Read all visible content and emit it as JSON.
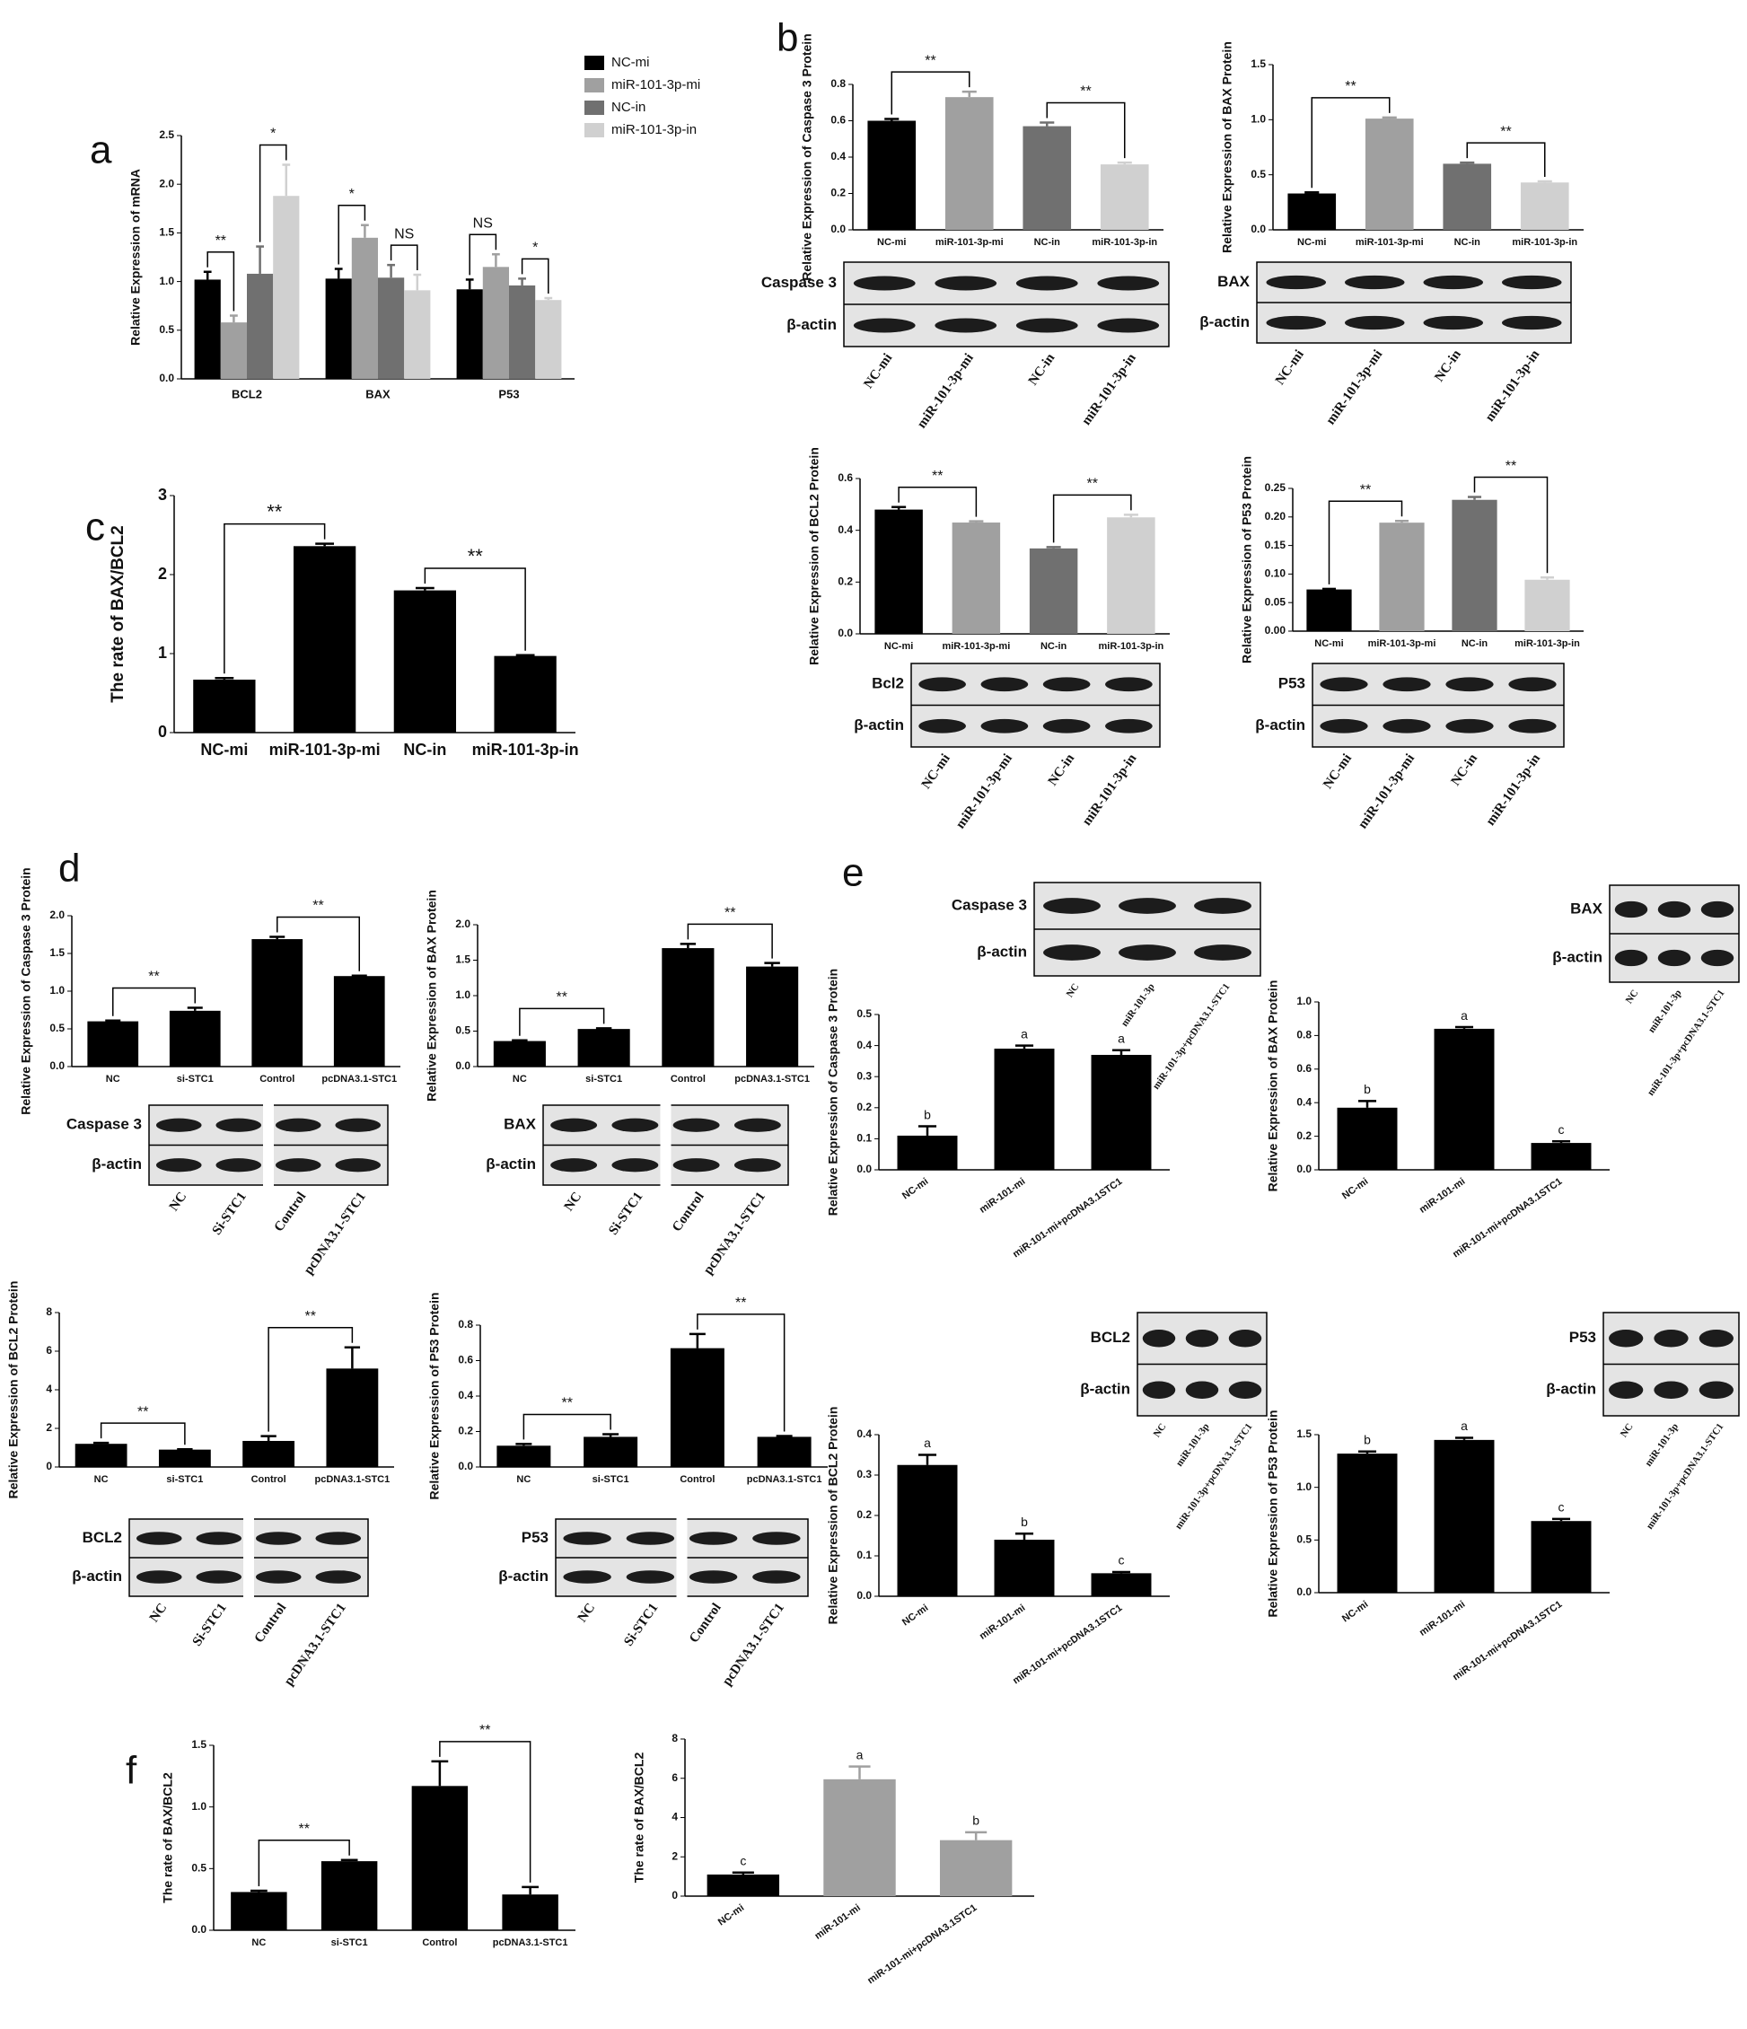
{
  "chart_data": [
    {
      "type": "grouped-bar",
      "panel": "a",
      "ylabel": "Relative Expression of mRNA",
      "categories": [
        "BCL2",
        "BAX",
        "P53"
      ],
      "series": [
        {
          "name": "NC-mi",
          "color": "#000000",
          "values": [
            1.02,
            1.03,
            0.92
          ],
          "errors": [
            0.08,
            0.1,
            0.1
          ]
        },
        {
          "name": "miR-101-3p-mi",
          "color": "#a0a0a0",
          "values": [
            0.58,
            1.45,
            1.15
          ],
          "errors": [
            0.07,
            0.13,
            0.13
          ]
        },
        {
          "name": "NC-in",
          "color": "#707070",
          "values": [
            1.08,
            1.04,
            0.96
          ],
          "errors": [
            0.28,
            0.13,
            0.07
          ]
        },
        {
          "name": "miR-101-3p-in",
          "color": "#d0d0d0",
          "values": [
            1.88,
            0.91,
            0.81
          ],
          "errors": [
            0.32,
            0.16,
            0.02
          ]
        }
      ],
      "ylim": [
        0,
        2.5
      ],
      "yticks": [
        {
          "value": 0,
          "label": "0.0"
        },
        0.5,
        {
          "value": 1,
          "label": "1.0"
        },
        1.5,
        {
          "value": 2,
          "label": "2.0"
        },
        2.5
      ],
      "brackets": [
        {
          "group": 0,
          "pair": [
            0,
            1
          ],
          "label": "**"
        },
        {
          "group": 0,
          "pair": [
            2,
            3
          ],
          "label": "*"
        },
        {
          "group": 1,
          "pair": [
            0,
            1
          ],
          "label": "*"
        },
        {
          "group": 1,
          "pair": [
            2,
            3
          ],
          "label": "NS"
        },
        {
          "group": 2,
          "pair": [
            0,
            1
          ],
          "label": "NS"
        },
        {
          "group": 2,
          "pair": [
            2,
            3
          ],
          "label": "*"
        }
      ]
    },
    {
      "type": "bar",
      "panel": "b",
      "ylabel": "Relative Expression of Caspase 3 Protein",
      "categories": [
        "NC-mi",
        "miR-101-3p-mi",
        "NC-in",
        "miR-101-3p-in"
      ],
      "values": [
        0.6,
        0.73,
        0.57,
        0.36
      ],
      "errors": [
        0.01,
        0.03,
        0.02,
        0.01
      ],
      "colors": [
        "#000000",
        "#a0a0a0",
        "#707070",
        "#d0d0d0"
      ],
      "ylim": [
        0,
        0.8
      ],
      "yticks": [
        {
          "value": 0,
          "label": "0.0"
        },
        0.2,
        0.4,
        0.6,
        0.8
      ],
      "brackets": [
        {
          "pair": [
            0,
            1
          ],
          "label": "**"
        },
        {
          "pair": [
            2,
            3
          ],
          "label": "**"
        }
      ],
      "blot": {
        "rows": [
          "Caspase 3",
          "β-actin"
        ],
        "lanes": [
          "NC-mi",
          "miR-101-3p-mi",
          "NC-in",
          "miR-101-3p-in"
        ]
      }
    },
    {
      "type": "bar",
      "ylabel": "Relative Expression of BAX Protein",
      "categories": [
        "NC-mi",
        "miR-101-3p-mi",
        "NC-in",
        "miR-101-3p-in"
      ],
      "values": [
        0.33,
        1.01,
        0.6,
        0.43
      ],
      "errors": [
        0.01,
        0.01,
        0.01,
        0.01
      ],
      "colors": [
        "#000000",
        "#a0a0a0",
        "#707070",
        "#d0d0d0"
      ],
      "ylim": [
        0,
        1.5
      ],
      "yticks": [
        {
          "value": 0,
          "label": "0.0"
        },
        0.5,
        {
          "value": 1,
          "label": "1.0"
        },
        1.5
      ],
      "brackets": [
        {
          "pair": [
            0,
            1
          ],
          "label": "**"
        },
        {
          "pair": [
            2,
            3
          ],
          "label": "**"
        }
      ],
      "blot": {
        "rows": [
          "BAX",
          "β-actin"
        ],
        "lanes": [
          "NC-mi",
          "miR-101-3p-mi",
          "NC-in",
          "miR-101-3p-in"
        ]
      }
    },
    {
      "type": "bar",
      "ylabel": "Relative Expression of BCL2 Protein",
      "categories": [
        "NC-mi",
        "miR-101-3p-mi",
        "NC-in",
        "miR-101-3p-in"
      ],
      "values": [
        0.48,
        0.43,
        0.33,
        0.45
      ],
      "errors": [
        0.01,
        0.005,
        0.005,
        0.01
      ],
      "colors": [
        "#000000",
        "#a0a0a0",
        "#707070",
        "#d0d0d0"
      ],
      "ylim": [
        0,
        0.6
      ],
      "yticks": [
        {
          "value": 0,
          "label": "0.0"
        },
        0.2,
        0.4,
        0.6
      ],
      "brackets": [
        {
          "pair": [
            0,
            1
          ],
          "label": "**"
        },
        {
          "pair": [
            2,
            3
          ],
          "label": "**"
        }
      ],
      "blot": {
        "rows": [
          "Bcl2",
          "β-actin"
        ],
        "lanes": [
          "NC-mi",
          "miR-101-3p-mi",
          "NC-in",
          "miR-101-3p-in"
        ]
      }
    },
    {
      "type": "bar",
      "ylabel": "Relative Expression of P53 Protein",
      "categories": [
        "NC-mi",
        "miR-101-3p-mi",
        "NC-in",
        "miR-101-3p-in"
      ],
      "values": [
        0.073,
        0.19,
        0.23,
        0.09
      ],
      "errors": [
        0.001,
        0.003,
        0.005,
        0.004
      ],
      "colors": [
        "#000000",
        "#a0a0a0",
        "#707070",
        "#d0d0d0"
      ],
      "ylim": [
        0,
        0.25
      ],
      "yticks": [
        {
          "value": 0,
          "label": "0.00"
        },
        0.05,
        {
          "value": 0.1,
          "label": "0.10"
        },
        0.15,
        {
          "value": 0.2,
          "label": "0.20"
        },
        0.25
      ],
      "brackets": [
        {
          "pair": [
            0,
            1
          ],
          "label": "**"
        },
        {
          "pair": [
            2,
            3
          ],
          "label": "**"
        }
      ],
      "blot": {
        "rows": [
          "P53",
          "β-actin"
        ],
        "lanes": [
          "NC-mi",
          "miR-101-3p-mi",
          "NC-in",
          "miR-101-3p-in"
        ]
      }
    },
    {
      "type": "bar",
      "panel": "c",
      "ylabel": "The rate of BAX/BCL2",
      "categories": [
        "NC-mi",
        "miR-101-3p-mi",
        "NC-in",
        "miR-101-3p-in"
      ],
      "values": [
        0.67,
        2.36,
        1.8,
        0.97
      ],
      "errors": [
        0.02,
        0.03,
        0.03,
        0.01
      ],
      "colors": [
        "#000000",
        "#000000",
        "#000000",
        "#000000"
      ],
      "ylim": [
        0,
        3
      ],
      "yticks": [
        0,
        1,
        2,
        3
      ],
      "brackets": [
        {
          "pair": [
            0,
            1
          ],
          "label": "**"
        },
        {
          "pair": [
            2,
            3
          ],
          "label": "**"
        }
      ]
    },
    {
      "type": "bar",
      "panel": "d",
      "ylabel": "Relative Expression of Caspase 3 Protein",
      "categories": [
        "NC",
        "si-STC1",
        "Control",
        "pcDNA3.1-STC1"
      ],
      "values": [
        0.6,
        0.74,
        1.69,
        1.2
      ],
      "errors": [
        0.01,
        0.04,
        0.03,
        0.005
      ],
      "colors": [
        "#000000",
        "#000000",
        "#000000",
        "#000000"
      ],
      "ylim": [
        0,
        2
      ],
      "yticks": [
        {
          "value": 0,
          "label": "0.0"
        },
        0.5,
        {
          "value": 1,
          "label": "1.0"
        },
        1.5,
        {
          "value": 2,
          "label": "2.0"
        }
      ],
      "brackets": [
        {
          "pair": [
            0,
            1
          ],
          "label": "**"
        },
        {
          "pair": [
            2,
            3
          ],
          "label": "**"
        }
      ],
      "blot": {
        "rows": [
          "Caspase 3",
          "β-actin"
        ],
        "lanes": [
          "NC",
          "Si-STC1",
          "Control",
          "pcDNA3.1-STC1"
        ]
      }
    },
    {
      "type": "bar",
      "ylabel": "Relative Expression of BAX Protein",
      "categories": [
        "NC",
        "si-STC1",
        "Control",
        "pcDNA3.1-STC1"
      ],
      "values": [
        0.36,
        0.53,
        1.67,
        1.41
      ],
      "errors": [
        0.01,
        0.01,
        0.06,
        0.05
      ],
      "colors": [
        "#000000",
        "#000000",
        "#000000",
        "#000000"
      ],
      "ylim": [
        0,
        2
      ],
      "yticks": [
        {
          "value": 0,
          "label": "0.0"
        },
        0.5,
        {
          "value": 1,
          "label": "1.0"
        },
        1.5,
        {
          "value": 2,
          "label": "2.0"
        }
      ],
      "brackets": [
        {
          "pair": [
            0,
            1
          ],
          "label": "**"
        },
        {
          "pair": [
            2,
            3
          ],
          "label": "**"
        }
      ],
      "blot": {
        "rows": [
          "BAX",
          "β-actin"
        ],
        "lanes": [
          "NC",
          "Si-STC1",
          "Control",
          "pcDNA3.1-STC1"
        ]
      }
    },
    {
      "type": "bar",
      "ylabel": "Relative Expression of BCL2 Protein",
      "categories": [
        "NC",
        "si-STC1",
        "Control",
        "pcDNA3.1-STC1"
      ],
      "values": [
        1.2,
        0.9,
        1.35,
        5.1
      ],
      "errors": [
        0.05,
        0.02,
        0.25,
        1.1
      ],
      "colors": [
        "#000000",
        "#000000",
        "#000000",
        "#000000"
      ],
      "ylim": [
        0,
        8
      ],
      "yticks": [
        0,
        2,
        4,
        6,
        8
      ],
      "brackets": [
        {
          "pair": [
            0,
            1
          ],
          "label": "**"
        },
        {
          "pair": [
            2,
            3
          ],
          "label": "**"
        }
      ],
      "blot": {
        "rows": [
          "BCL2",
          "β-actin"
        ],
        "lanes": [
          "NC",
          "Si-STC1",
          "Control",
          "pcDNA3.1-STC1"
        ]
      }
    },
    {
      "type": "bar",
      "ylabel": "Relative Expression of P53 Protein",
      "categories": [
        "NC",
        "si-STC1",
        "Control",
        "pcDNA3.1-STC1"
      ],
      "values": [
        0.12,
        0.17,
        0.67,
        0.17
      ],
      "errors": [
        0.01,
        0.015,
        0.08,
        0.005
      ],
      "colors": [
        "#000000",
        "#000000",
        "#000000",
        "#000000"
      ],
      "ylim": [
        0,
        0.8
      ],
      "yticks": [
        {
          "value": 0,
          "label": "0.0"
        },
        0.2,
        0.4,
        0.6,
        0.8
      ],
      "brackets": [
        {
          "pair": [
            0,
            1
          ],
          "label": "**"
        },
        {
          "pair": [
            2,
            3
          ],
          "label": "**"
        }
      ],
      "blot": {
        "rows": [
          "P53",
          "β-actin"
        ],
        "lanes": [
          "NC",
          "Si-STC1",
          "Control",
          "pcDNA3.1-STC1"
        ]
      }
    },
    {
      "type": "bar",
      "panel": "e",
      "ylabel": "Relative Expression of Caspase 3 Protein",
      "categories": [
        "NC-mi",
        "miR-101-mi",
        "miR-101-mi+pcDNA3.1STC1"
      ],
      "values": [
        0.11,
        0.39,
        0.37
      ],
      "errors": [
        0.03,
        0.01,
        0.015
      ],
      "colors": [
        "#000000",
        "#000000",
        "#000000"
      ],
      "ylim": [
        0,
        0.5
      ],
      "yticks": [
        {
          "value": 0,
          "label": "0.0"
        },
        0.1,
        0.2,
        0.3,
        0.4,
        0.5
      ],
      "letters": [
        "b",
        "a",
        "a"
      ],
      "blot": {
        "rows": [
          "Caspase 3",
          "β-actin"
        ],
        "lanes": [
          "NC",
          "miR-101-3p",
          "miR-101-3p+pcDNA3.1-STC1"
        ]
      }
    },
    {
      "type": "bar",
      "ylabel": "Relative Expression of BAX Protein",
      "categories": [
        "NC-mi",
        "miR-101-mi",
        "miR-101-mi+pcDNA3.1STC1"
      ],
      "values": [
        0.37,
        0.84,
        0.16
      ],
      "errors": [
        0.04,
        0.01,
        0.01
      ],
      "colors": [
        "#000000",
        "#000000",
        "#000000"
      ],
      "ylim": [
        0,
        1
      ],
      "yticks": [
        {
          "value": 0,
          "label": "0.0"
        },
        0.2,
        0.4,
        0.6,
        0.8,
        {
          "value": 1,
          "label": "1.0"
        }
      ],
      "letters": [
        "b",
        "a",
        "c"
      ],
      "blot": {
        "rows": [
          "BAX",
          "β-actin"
        ],
        "lanes": [
          "NC",
          "miR-101-3p",
          "miR-101-3p+pcDNA3.1-STC1"
        ]
      }
    },
    {
      "type": "bar",
      "ylabel": "Relative Expression of BCL2 Protein",
      "categories": [
        "NC-mi",
        "miR-101-mi",
        "miR-101-mi+pcDNA3.1STC1"
      ],
      "values": [
        0.325,
        0.14,
        0.057
      ],
      "errors": [
        0.025,
        0.015,
        0.003
      ],
      "colors": [
        "#000000",
        "#000000",
        "#000000"
      ],
      "ylim": [
        0,
        0.4
      ],
      "yticks": [
        {
          "value": 0,
          "label": "0.0"
        },
        0.1,
        0.2,
        0.3,
        0.4
      ],
      "letters": [
        "a",
        "b",
        "c"
      ],
      "blot": {
        "rows": [
          "BCL2",
          "β-actin"
        ],
        "lanes": [
          "NC",
          "miR-101-3p",
          "miR-101-3p+pcDNA3.1-STC1"
        ]
      }
    },
    {
      "type": "bar",
      "ylabel": "Relative Expression of P53 Protein",
      "categories": [
        "NC-mi",
        "miR-101-mi",
        "miR-101-mi+pcDNA3.1STC1"
      ],
      "values": [
        1.32,
        1.45,
        0.68
      ],
      "errors": [
        0.02,
        0.02,
        0.02
      ],
      "colors": [
        "#000000",
        "#000000",
        "#000000"
      ],
      "ylim": [
        0,
        1.5
      ],
      "yticks": [
        {
          "value": 0,
          "label": "0.0"
        },
        0.5,
        {
          "value": 1,
          "label": "1.0"
        },
        1.5
      ],
      "letters": [
        "b",
        "a",
        "c"
      ],
      "blot": {
        "rows": [
          "P53",
          "β-actin"
        ],
        "lanes": [
          "NC",
          "miR-101-3p",
          "miR-101-3p+pcDNA3.1-STC1"
        ]
      }
    },
    {
      "type": "bar",
      "panel": "f",
      "ylabel": "The rate of BAX/BCL2",
      "categories": [
        "NC",
        "si-STC1",
        "Control",
        "pcDNA3.1-STC1"
      ],
      "values": [
        0.31,
        0.56,
        1.17,
        0.29
      ],
      "errors": [
        0.01,
        0.01,
        0.2,
        0.06
      ],
      "colors": [
        "#000000",
        "#000000",
        "#000000",
        "#000000"
      ],
      "ylim": [
        0,
        1.5
      ],
      "yticks": [
        {
          "value": 0,
          "label": "0.0"
        },
        0.5,
        {
          "value": 1,
          "label": "1.0"
        },
        1.5
      ],
      "brackets": [
        {
          "pair": [
            0,
            1
          ],
          "label": "**"
        },
        {
          "pair": [
            2,
            3
          ],
          "label": "**"
        }
      ]
    },
    {
      "type": "bar",
      "ylabel": "The rate of BAX/BCL2",
      "categories": [
        "NC-mi",
        "miR-101-mi",
        "miR-101-mi+pcDNA3.1STC1"
      ],
      "values": [
        1.1,
        5.95,
        2.85
      ],
      "errors": [
        0.1,
        0.65,
        0.4
      ],
      "colors": [
        "#000000",
        "#a0a0a0",
        "#a0a0a0"
      ],
      "ylim": [
        0,
        8
      ],
      "yticks": [
        0,
        2,
        4,
        6,
        8
      ],
      "letters": [
        "c",
        "a",
        "b"
      ]
    }
  ]
}
